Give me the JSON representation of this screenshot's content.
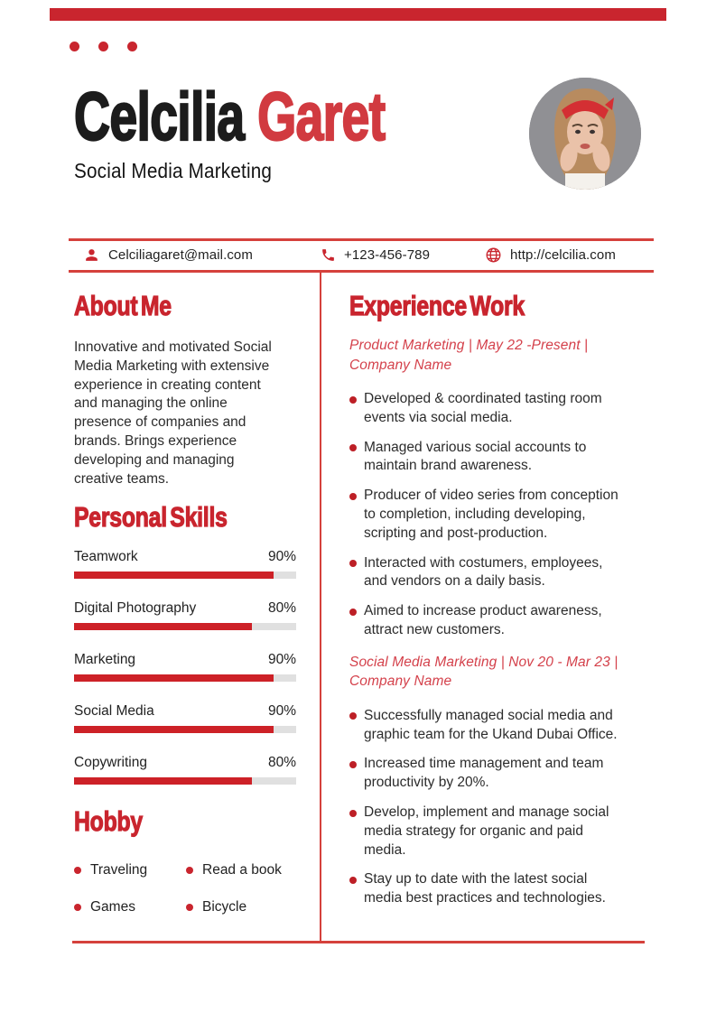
{
  "colors": {
    "accent_red": "#c9252e",
    "name_red": "#d13a40",
    "meta_red": "#d4414b",
    "line_red": "#d5413c",
    "bar_red": "#cd2127",
    "track_gray": "#e0e0e0",
    "text_dark": "#2c2c2c",
    "name_black": "#1c1c1c"
  },
  "header": {
    "name_first": "Celcilia ",
    "name_last": "Garet",
    "subtitle": "Social Media Marketing",
    "photo_description": "Portrait of a woman with a red headband, hands on cheeks"
  },
  "contact": {
    "email": "Celciliagaret@mail.com",
    "phone": "+123-456-789",
    "website": "http://celcilia.com"
  },
  "about": {
    "heading": "About Me",
    "text": "Innovative and motivated Social\nMedia Marketing with extensive\nexperience in creating content\nand managing the online\npresence of companies and\nbrands. Brings experience\ndeveloping and managing\ncreative teams."
  },
  "skills": {
    "heading": "Personal Skills",
    "items": [
      {
        "label": "Teamwork",
        "percent": 90
      },
      {
        "label": "Digital Photography",
        "percent": 80
      },
      {
        "label": "Marketing",
        "percent": 90
      },
      {
        "label": "Social Media",
        "percent": 90
      },
      {
        "label": "Copywriting",
        "percent": 80
      }
    ]
  },
  "hobby": {
    "heading": "Hobby",
    "items": [
      "Traveling",
      "Read a book",
      "Games",
      "Bicycle"
    ]
  },
  "experience": {
    "heading": "Experience Work",
    "jobs": [
      {
        "meta": "Product Marketing | May 22 -Present |\nCompany Name",
        "bullets": [
          "Developed & coordinated tasting room\nevents via social media.",
          "Managed various social accounts to\nmaintain brand awareness.",
          "Producer of video series from conception\nto completion, including developing,\nscripting and post-production.",
          "Interacted with costumers, employees,\nand vendors on a daily basis.",
          "Aimed to increase product awareness,\nattract new customers."
        ]
      },
      {
        "meta": "Social Media Marketing | Nov 20 - Mar 23 |\nCompany Name",
        "bullets": [
          "Successfully managed social media and\ngraphic team for the Ukand Dubai Office.",
          "Increased time management and team\nproductivity by 20%.",
          "Develop, implement and manage social\nmedia strategy for organic and paid\nmedia.",
          "Stay up to date with the latest social\nmedia best practices and technologies."
        ]
      }
    ]
  }
}
